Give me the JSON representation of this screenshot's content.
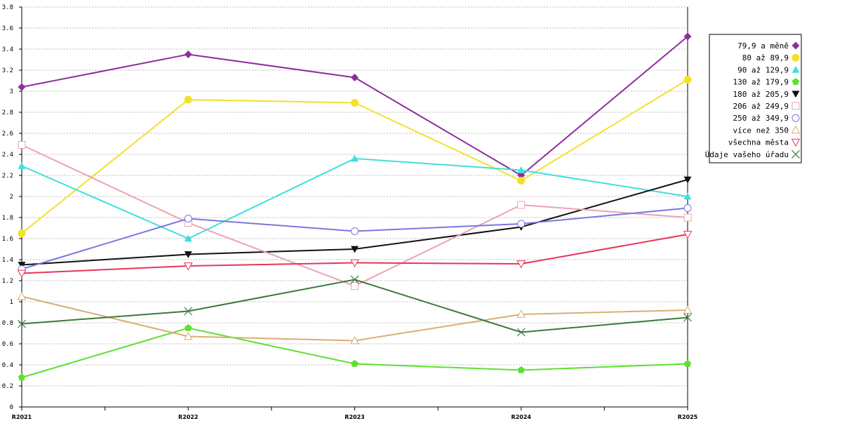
{
  "chart_data": {
    "type": "line",
    "categories": [
      "R2021",
      "R2022",
      "R2023",
      "R2024",
      "R2025"
    ],
    "ylim": [
      0,
      3.8
    ],
    "ytick_step": 0.2,
    "ytick_labels": [
      "0",
      "0.2",
      "0.4",
      "0.6",
      "0.8",
      "1",
      "1.2",
      "1.4",
      "1.6",
      "1.8",
      "2",
      "2.2",
      "2.4",
      "2.6",
      "2.8",
      "3",
      "3.2",
      "3.4",
      "3.6",
      "3.8"
    ],
    "grid": true,
    "legend_position": "right",
    "series": [
      {
        "name": "79,9 a měně",
        "color": "#8e2e9e",
        "marker": "diamond",
        "values": [
          3.04,
          3.35,
          3.13,
          2.2,
          3.52
        ]
      },
      {
        "name": "80 až 89,9",
        "color": "#f2e12a",
        "marker": "circle",
        "values": [
          1.65,
          2.92,
          2.89,
          2.15,
          3.11
        ]
      },
      {
        "name": "90 až 129,9",
        "color": "#3de0dd",
        "marker": "triangle-up",
        "values": [
          2.29,
          1.6,
          2.36,
          2.25,
          2.0
        ]
      },
      {
        "name": "130 až 179,9",
        "color": "#5ee033",
        "marker": "pentagon",
        "values": [
          0.28,
          0.75,
          0.41,
          0.35,
          0.41
        ]
      },
      {
        "name": "180 až 205,9",
        "color": "#111111",
        "marker": "triangle-down",
        "values": [
          1.35,
          1.45,
          1.5,
          1.71,
          2.16
        ]
      },
      {
        "name": "206 až 249,9",
        "color": "#eaa3b7",
        "marker": "square-open",
        "values": [
          2.49,
          1.75,
          1.15,
          1.92,
          1.8
        ]
      },
      {
        "name": "250 až 349,9",
        "color": "#7b76e0",
        "marker": "circle-open",
        "values": [
          1.31,
          1.79,
          1.67,
          1.74,
          1.89
        ]
      },
      {
        "name": "více než 350",
        "color": "#d9ae74",
        "marker": "triangle-up-open",
        "values": [
          1.05,
          0.67,
          0.63,
          0.88,
          0.92
        ]
      },
      {
        "name": "všechna města",
        "color": "#e8335a",
        "marker": "triangle-down-open",
        "values": [
          1.27,
          1.34,
          1.37,
          1.36,
          1.64
        ]
      },
      {
        "name": "Údaje vašeho úřadu",
        "color": "#3a7a3a",
        "marker": "x",
        "values": [
          0.79,
          0.91,
          1.21,
          0.71,
          0.85
        ]
      }
    ]
  }
}
